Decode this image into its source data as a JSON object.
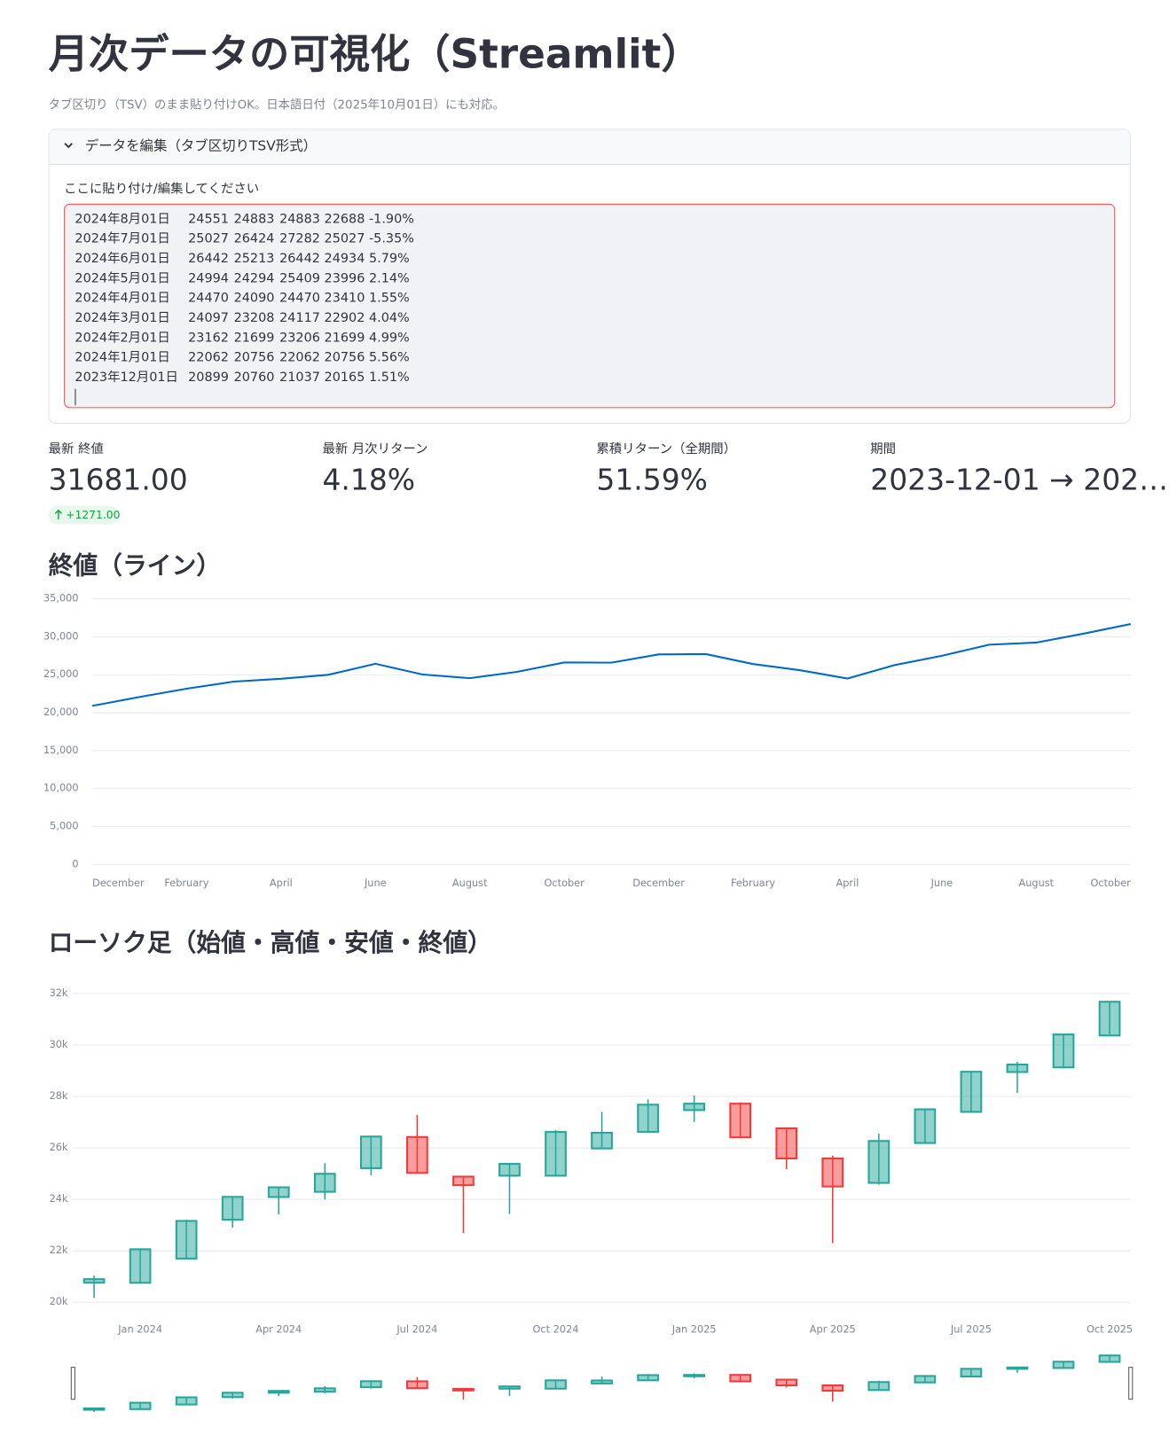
{
  "header": {
    "title": "月次データの可視化（Streamlit）",
    "subtitle": "タブ区切り（TSV）のまま貼り付けOK。日本語日付（2025年10月01日）にも対応。"
  },
  "expander": {
    "label": "データを編集（タブ区切りTSV形式）",
    "input_label": "ここに貼り付け/編集してください",
    "rows": [
      [
        "2024年8月01日",
        24551,
        24883,
        24883,
        22688,
        "-1.90%"
      ],
      [
        "2024年7月01日",
        25027,
        26424,
        27282,
        25027,
        "-5.35%"
      ],
      [
        "2024年6月01日",
        26442,
        25213,
        26442,
        24934,
        "5.79%"
      ],
      [
        "2024年5月01日",
        24994,
        24294,
        25409,
        23996,
        "2.14%"
      ],
      [
        "2024年4月01日",
        24470,
        24090,
        24470,
        23410,
        "1.55%"
      ],
      [
        "2024年3月01日",
        24097,
        23208,
        24117,
        22902,
        "4.04%"
      ],
      [
        "2024年2月01日",
        23162,
        21699,
        23206,
        21699,
        "4.99%"
      ],
      [
        "2024年1月01日",
        22062,
        20756,
        22062,
        20756,
        "5.56%"
      ],
      [
        "2023年12月01日",
        20899,
        20760,
        21037,
        20165,
        "1.51%"
      ]
    ]
  },
  "metrics": [
    {
      "label": "最新 終値",
      "value": "31681.00",
      "delta": "+1271.00"
    },
    {
      "label": "最新 月次リターン",
      "value": "4.18%"
    },
    {
      "label": "累積リターン（全期間）",
      "value": "51.59%"
    },
    {
      "label": "期間",
      "value": "2023-12-01 → 202…"
    }
  ],
  "chart_data": [
    {
      "type": "line",
      "title": "終値（ライン）",
      "categories": [
        "December",
        null,
        "February",
        null,
        "April",
        null,
        "June",
        null,
        "August",
        null,
        "October",
        null,
        "December",
        null,
        "February",
        null,
        "April",
        null,
        "June",
        null,
        "August",
        null,
        "October"
      ],
      "values": [
        20899,
        22062,
        23162,
        24097,
        24470,
        24994,
        26442,
        25027,
        24551,
        25380,
        26620,
        26590,
        27680,
        27720,
        26410,
        25590,
        24500,
        26270,
        27500,
        28960,
        29240,
        30410,
        31681
      ],
      "color": "#0068c9",
      "ylim": [
        0,
        35000
      ],
      "yticks": [
        0,
        {
          "value": 5000,
          "label": "5,000"
        },
        {
          "value": 10000,
          "label": "10,000"
        },
        {
          "value": 15000,
          "label": "15,000"
        },
        {
          "value": 20000,
          "label": "20,000"
        },
        {
          "value": 25000,
          "label": "25,000"
        },
        {
          "value": 30000,
          "label": "30,000"
        },
        {
          "value": 35000,
          "label": "35,000"
        }
      ],
      "grid": true
    },
    {
      "type": "candlestick",
      "title": "ローソク足（始値・高値・安値・終値）",
      "x": [
        "2023-12",
        "2024-01",
        "2024-02",
        "2024-03",
        "2024-04",
        "2024-05",
        "2024-06",
        "2024-07",
        "2024-08",
        "2024-09",
        "2024-10",
        "2024-11",
        "2024-12",
        "2025-01",
        "2025-02",
        "2025-03",
        "2025-04",
        "2025-05",
        "2025-06",
        "2025-07",
        "2025-08",
        "2025-09",
        "2025-10"
      ],
      "open": [
        20760,
        20756,
        21699,
        23208,
        24090,
        24294,
        25213,
        26424,
        24883,
        24920,
        24920,
        25980,
        26620,
        27470,
        27720,
        26760,
        25590,
        24640,
        26190,
        27400,
        28950,
        29130,
        30370
      ],
      "high": [
        21037,
        22062,
        23206,
        24117,
        24470,
        25409,
        26442,
        27282,
        24883,
        25400,
        26690,
        27400,
        27890,
        28040,
        27770,
        26760,
        25700,
        26550,
        27500,
        28960,
        29350,
        30410,
        31681
      ],
      "low": [
        20165,
        20756,
        21699,
        22902,
        23410,
        23996,
        24934,
        25027,
        22688,
        23430,
        24920,
        25980,
        26620,
        27010,
        26410,
        25170,
        22300,
        24570,
        26160,
        27400,
        28140,
        29100,
        30340
      ],
      "close": [
        20899,
        22062,
        23162,
        24097,
        24470,
        24994,
        26442,
        25027,
        24551,
        25380,
        26620,
        26590,
        27680,
        27720,
        26410,
        25590,
        24500,
        26270,
        27500,
        28960,
        29240,
        30410,
        31681
      ],
      "increasing_color": "#26a69a",
      "decreasing_color": "#ef3b3b",
      "ylim": [
        19600,
        32300
      ],
      "yticks": [
        {
          "value": 20000,
          "label": "20k"
        },
        {
          "value": 22000,
          "label": "22k"
        },
        {
          "value": 24000,
          "label": "24k"
        },
        {
          "value": 26000,
          "label": "26k"
        },
        {
          "value": 28000,
          "label": "28k"
        },
        {
          "value": 30000,
          "label": "30k"
        },
        {
          "value": 32000,
          "label": "32k"
        }
      ],
      "xticks": [
        {
          "value": "2024-01",
          "label": "Jan 2024"
        },
        {
          "value": "2024-04",
          "label": "Apr 2024"
        },
        {
          "value": "2024-07",
          "label": "Jul 2024"
        },
        {
          "value": "2024-10",
          "label": "Oct 2024"
        },
        {
          "value": "2025-01",
          "label": "Jan 2025"
        },
        {
          "value": "2025-04",
          "label": "Apr 2025"
        },
        {
          "value": "2025-07",
          "label": "Jul 2025"
        },
        {
          "value": "2025-10",
          "label": "Oct 2025"
        }
      ],
      "grid": true
    }
  ]
}
